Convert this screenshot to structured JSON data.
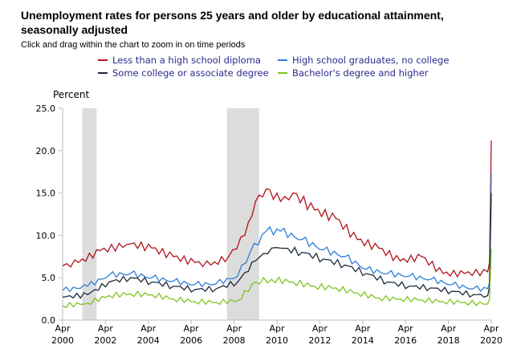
{
  "chart_data": {
    "type": "line",
    "title": "Unemployment rates for persons 25 years and older by educational attainment, seasonally adjusted",
    "subtitle": "Click and drag within the chart to zoom in on time periods",
    "ylabel": "Percent",
    "ylim": [
      0,
      25
    ],
    "yticks": [
      "0.0",
      "5.0",
      "10.0",
      "15.0",
      "20.0",
      "25.0"
    ],
    "xlim": [
      "2000-04",
      "2020-04"
    ],
    "xticks": [
      [
        "Apr",
        "2000"
      ],
      [
        "Apr",
        "2002"
      ],
      [
        "Apr",
        "2004"
      ],
      [
        "Apr",
        "2006"
      ],
      [
        "Apr",
        "2008"
      ],
      [
        "Apr",
        "2010"
      ],
      [
        "Apr",
        "2012"
      ],
      [
        "Apr",
        "2014"
      ],
      [
        "Apr",
        "2016"
      ],
      [
        "Apr",
        "2018"
      ],
      [
        "Apr",
        "2020"
      ]
    ],
    "grid": false,
    "legend_placement": "top",
    "recessions": [
      [
        "2001-03",
        "2001-11"
      ],
      [
        "2007-12",
        "2009-06"
      ]
    ],
    "series": [
      {
        "name": "Less than a high school diploma",
        "color": "#b0121b",
        "points": [
          [
            "2000-04",
            6.4
          ],
          [
            "2001-01",
            6.8
          ],
          [
            "2002-01",
            8.2
          ],
          [
            "2003-06",
            9.0
          ],
          [
            "2004-06",
            8.5
          ],
          [
            "2005-06",
            7.5
          ],
          [
            "2006-06",
            6.8
          ],
          [
            "2007-03",
            6.5
          ],
          [
            "2008-01",
            7.5
          ],
          [
            "2008-10",
            10.0
          ],
          [
            "2009-04",
            14.0
          ],
          [
            "2009-10",
            15.5
          ],
          [
            "2010-06",
            14.0
          ],
          [
            "2011-01",
            15.0
          ],
          [
            "2012-01",
            13.0
          ],
          [
            "2013-01",
            12.0
          ],
          [
            "2014-01",
            9.5
          ],
          [
            "2015-01",
            8.5
          ],
          [
            "2016-01",
            7.0
          ],
          [
            "2017-01",
            7.5
          ],
          [
            "2018-01",
            5.5
          ],
          [
            "2019-01",
            5.5
          ],
          [
            "2020-02",
            5.7
          ],
          [
            "2020-03",
            6.8
          ],
          [
            "2020-04",
            21.2
          ]
        ]
      },
      {
        "name": "High school graduates, no college",
        "color": "#2c7fd8",
        "points": [
          [
            "2000-04",
            3.5
          ],
          [
            "2001-06",
            4.0
          ],
          [
            "2002-06",
            5.3
          ],
          [
            "2003-06",
            5.5
          ],
          [
            "2004-06",
            5.0
          ],
          [
            "2005-06",
            4.6
          ],
          [
            "2006-06",
            4.2
          ],
          [
            "2007-06",
            4.3
          ],
          [
            "2008-06",
            5.2
          ],
          [
            "2009-01",
            8.0
          ],
          [
            "2009-10",
            10.5
          ],
          [
            "2010-06",
            10.5
          ],
          [
            "2011-06",
            9.5
          ],
          [
            "2012-06",
            8.3
          ],
          [
            "2013-06",
            7.5
          ],
          [
            "2014-06",
            6.0
          ],
          [
            "2015-06",
            5.5
          ],
          [
            "2016-06",
            5.2
          ],
          [
            "2017-06",
            4.8
          ],
          [
            "2018-06",
            4.2
          ],
          [
            "2019-06",
            3.7
          ],
          [
            "2020-02",
            3.7
          ],
          [
            "2020-03",
            4.4
          ],
          [
            "2020-04",
            17.3
          ]
        ]
      },
      {
        "name": "Some college or associate degree",
        "color": "#1c2a3a",
        "points": [
          [
            "2000-04",
            2.7
          ],
          [
            "2001-06",
            3.0
          ],
          [
            "2002-06",
            4.5
          ],
          [
            "2003-06",
            5.0
          ],
          [
            "2004-06",
            4.5
          ],
          [
            "2005-06",
            4.0
          ],
          [
            "2006-06",
            3.6
          ],
          [
            "2007-06",
            3.7
          ],
          [
            "2008-06",
            4.5
          ],
          [
            "2009-04",
            7.0
          ],
          [
            "2010-01",
            8.5
          ],
          [
            "2010-06",
            8.5
          ],
          [
            "2011-06",
            8.0
          ],
          [
            "2012-06",
            7.2
          ],
          [
            "2013-06",
            6.5
          ],
          [
            "2014-06",
            5.5
          ],
          [
            "2015-06",
            4.5
          ],
          [
            "2016-06",
            4.0
          ],
          [
            "2017-06",
            3.8
          ],
          [
            "2018-06",
            3.4
          ],
          [
            "2019-06",
            3.0
          ],
          [
            "2020-02",
            2.9
          ],
          [
            "2020-03",
            3.9
          ],
          [
            "2020-04",
            15.0
          ]
        ]
      },
      {
        "name": "Bachelor's degree and higher",
        "color": "#7cc520",
        "points": [
          [
            "2000-04",
            1.7
          ],
          [
            "2001-06",
            2.0
          ],
          [
            "2002-06",
            2.9
          ],
          [
            "2003-06",
            3.1
          ],
          [
            "2004-06",
            3.0
          ],
          [
            "2005-06",
            2.5
          ],
          [
            "2006-06",
            2.2
          ],
          [
            "2007-06",
            2.1
          ],
          [
            "2008-06",
            2.3
          ],
          [
            "2009-04",
            4.5
          ],
          [
            "2010-01",
            4.8
          ],
          [
            "2011-01",
            4.5
          ],
          [
            "2012-01",
            4.0
          ],
          [
            "2013-01",
            3.8
          ],
          [
            "2014-01",
            3.2
          ],
          [
            "2015-01",
            2.6
          ],
          [
            "2016-01",
            2.5
          ],
          [
            "2017-01",
            2.4
          ],
          [
            "2018-01",
            2.2
          ],
          [
            "2019-01",
            2.1
          ],
          [
            "2020-02",
            1.9
          ],
          [
            "2020-03",
            2.5
          ],
          [
            "2020-04",
            8.4
          ]
        ]
      }
    ]
  }
}
